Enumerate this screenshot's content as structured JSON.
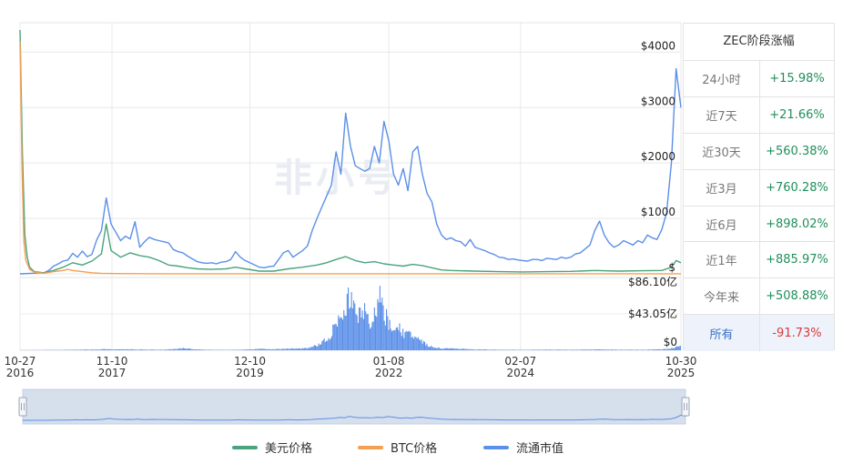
{
  "watermark": "非小号",
  "panel": {
    "title": "ZEC阶段涨幅",
    "rows": [
      {
        "label": "24小时",
        "value": "+15.98%",
        "color": "#1f8f5a"
      },
      {
        "label": "近7天",
        "value": "+21.66%",
        "color": "#1f8f5a"
      },
      {
        "label": "近30天",
        "value": "+560.38%",
        "color": "#1f8f5a"
      },
      {
        "label": "近3月",
        "value": "+760.28%",
        "color": "#1f8f5a"
      },
      {
        "label": "近6月",
        "value": "+898.02%",
        "color": "#1f8f5a"
      },
      {
        "label": "近1年",
        "value": "+885.97%",
        "color": "#1f8f5a"
      },
      {
        "label": "今年来",
        "value": "+508.88%",
        "color": "#1f8f5a"
      },
      {
        "label": "所有",
        "value": "-91.73%",
        "color": "#d93a3a",
        "selected": true
      }
    ]
  },
  "legend": [
    {
      "name": "美元价格",
      "color": "#4aa37c"
    },
    {
      "name": "BTC价格",
      "color": "#f5a050"
    },
    {
      "name": "流通市值",
      "color": "#5b8fe8"
    }
  ],
  "chart_data": {
    "type": "line",
    "x_ticks": [
      {
        "label1": "10-27",
        "label2": "2016"
      },
      {
        "label1": "11-10",
        "label2": "2017"
      },
      {
        "label1": "12-10",
        "label2": "2019"
      },
      {
        "label1": "01-08",
        "label2": "2022"
      },
      {
        "label1": "02-07",
        "label2": "2024"
      },
      {
        "label1": "10-30",
        "label2": "2025"
      }
    ],
    "price_axis": {
      "ticks": [
        "$4000",
        "$3000",
        "$2000",
        "$1000",
        "$"
      ],
      "ylim": [
        0,
        4400
      ]
    },
    "volume_axis": {
      "ticks": [
        "$86.10亿",
        "$43.05亿",
        "$0"
      ],
      "ylim": [
        0,
        86.1
      ]
    },
    "series": [
      {
        "name": "流通市值",
        "color": "#5b8fe8",
        "points": [
          [
            0,
            0
          ],
          [
            3,
            12
          ],
          [
            5,
            20
          ],
          [
            6,
            60
          ],
          [
            7,
            140
          ],
          [
            8,
            180
          ],
          [
            9,
            230
          ],
          [
            10,
            250
          ],
          [
            11,
            370
          ],
          [
            12,
            300
          ],
          [
            13,
            410
          ],
          [
            14,
            310
          ],
          [
            15,
            350
          ],
          [
            16,
            610
          ],
          [
            17,
            780
          ],
          [
            18,
            1370
          ],
          [
            19,
            900
          ],
          [
            20,
            750
          ],
          [
            21,
            600
          ],
          [
            22,
            680
          ],
          [
            23,
            630
          ],
          [
            24,
            940
          ],
          [
            25,
            480
          ],
          [
            26,
            580
          ],
          [
            27,
            660
          ],
          [
            28,
            620
          ],
          [
            29,
            600
          ],
          [
            30,
            580
          ],
          [
            31,
            560
          ],
          [
            32,
            440
          ],
          [
            33,
            400
          ],
          [
            34,
            380
          ],
          [
            35,
            320
          ],
          [
            36,
            270
          ],
          [
            37,
            220
          ],
          [
            38,
            200
          ],
          [
            39,
            190
          ],
          [
            40,
            200
          ],
          [
            41,
            180
          ],
          [
            42,
            210
          ],
          [
            43,
            220
          ],
          [
            44,
            260
          ],
          [
            45,
            400
          ],
          [
            46,
            300
          ],
          [
            47,
            240
          ],
          [
            48,
            200
          ],
          [
            49,
            160
          ],
          [
            50,
            120
          ],
          [
            51,
            110
          ],
          [
            52,
            130
          ],
          [
            53,
            140
          ],
          [
            54,
            260
          ],
          [
            55,
            380
          ],
          [
            56,
            420
          ],
          [
            57,
            300
          ],
          [
            58,
            360
          ],
          [
            59,
            420
          ],
          [
            60,
            500
          ],
          [
            61,
            780
          ],
          [
            62,
            1000
          ],
          [
            63,
            1200
          ],
          [
            64,
            1400
          ],
          [
            65,
            1600
          ],
          [
            66,
            2200
          ],
          [
            67,
            1800
          ],
          [
            68,
            2900
          ],
          [
            69,
            2300
          ],
          [
            70,
            1950
          ],
          [
            71,
            1900
          ],
          [
            72,
            1850
          ],
          [
            73,
            1900
          ],
          [
            74,
            2300
          ],
          [
            75,
            2000
          ],
          [
            76,
            2750
          ],
          [
            77,
            2400
          ],
          [
            78,
            1800
          ],
          [
            79,
            1600
          ],
          [
            80,
            1900
          ],
          [
            81,
            1500
          ],
          [
            82,
            2200
          ],
          [
            83,
            2300
          ],
          [
            84,
            1800
          ],
          [
            85,
            1450
          ],
          [
            86,
            1300
          ],
          [
            87,
            900
          ],
          [
            88,
            700
          ],
          [
            89,
            620
          ],
          [
            90,
            650
          ],
          [
            91,
            600
          ],
          [
            92,
            580
          ],
          [
            93,
            500
          ],
          [
            94,
            620
          ],
          [
            95,
            480
          ],
          [
            96,
            450
          ],
          [
            97,
            420
          ],
          [
            98,
            380
          ],
          [
            99,
            350
          ],
          [
            100,
            300
          ],
          [
            101,
            290
          ],
          [
            102,
            260
          ],
          [
            103,
            270
          ],
          [
            104,
            250
          ],
          [
            105,
            240
          ],
          [
            106,
            230
          ],
          [
            107,
            260
          ],
          [
            108,
            260
          ],
          [
            109,
            240
          ],
          [
            110,
            280
          ],
          [
            111,
            270
          ],
          [
            112,
            260
          ],
          [
            113,
            300
          ],
          [
            114,
            280
          ],
          [
            115,
            300
          ],
          [
            116,
            360
          ],
          [
            117,
            380
          ],
          [
            118,
            450
          ],
          [
            119,
            520
          ],
          [
            120,
            780
          ],
          [
            121,
            950
          ],
          [
            122,
            700
          ],
          [
            123,
            560
          ],
          [
            124,
            480
          ],
          [
            125,
            520
          ],
          [
            126,
            600
          ],
          [
            127,
            560
          ],
          [
            128,
            520
          ],
          [
            129,
            600
          ],
          [
            130,
            560
          ],
          [
            131,
            700
          ],
          [
            132,
            650
          ],
          [
            133,
            620
          ],
          [
            134,
            800
          ],
          [
            135,
            1100
          ],
          [
            136,
            2000
          ],
          [
            137,
            3700
          ],
          [
            138,
            3000
          ]
        ]
      },
      {
        "name": "美元价格",
        "color": "#4aa37c",
        "points": [
          [
            0,
            4400
          ],
          [
            0.5,
            2200
          ],
          [
            1,
            700
          ],
          [
            1.5,
            300
          ],
          [
            2,
            120
          ],
          [
            3,
            40
          ],
          [
            5,
            20
          ],
          [
            7,
            60
          ],
          [
            9,
            120
          ],
          [
            11,
            200
          ],
          [
            13,
            160
          ],
          [
            15,
            230
          ],
          [
            17,
            360
          ],
          [
            18,
            900
          ],
          [
            19,
            420
          ],
          [
            21,
            300
          ],
          [
            23,
            380
          ],
          [
            25,
            330
          ],
          [
            27,
            300
          ],
          [
            29,
            240
          ],
          [
            31,
            160
          ],
          [
            33,
            140
          ],
          [
            35,
            110
          ],
          [
            37,
            90
          ],
          [
            40,
            80
          ],
          [
            43,
            90
          ],
          [
            45,
            120
          ],
          [
            47,
            90
          ],
          [
            50,
            50
          ],
          [
            53,
            50
          ],
          [
            56,
            90
          ],
          [
            59,
            120
          ],
          [
            62,
            160
          ],
          [
            64,
            200
          ],
          [
            66,
            260
          ],
          [
            68,
            310
          ],
          [
            70,
            240
          ],
          [
            72,
            200
          ],
          [
            74,
            220
          ],
          [
            76,
            180
          ],
          [
            78,
            160
          ],
          [
            80,
            140
          ],
          [
            82,
            170
          ],
          [
            84,
            150
          ],
          [
            86,
            110
          ],
          [
            88,
            70
          ],
          [
            90,
            60
          ],
          [
            95,
            50
          ],
          [
            100,
            40
          ],
          [
            105,
            35
          ],
          [
            110,
            40
          ],
          [
            115,
            45
          ],
          [
            120,
            60
          ],
          [
            125,
            50
          ],
          [
            130,
            55
          ],
          [
            134,
            60
          ],
          [
            136,
            120
          ],
          [
            137,
            240
          ],
          [
            138,
            200
          ]
        ]
      },
      {
        "name": "BTC价格",
        "color": "#f5a050",
        "points": [
          [
            0,
            4200
          ],
          [
            0.4,
            2000
          ],
          [
            0.8,
            600
          ],
          [
            1.2,
            250
          ],
          [
            2,
            80
          ],
          [
            3,
            30
          ],
          [
            5,
            10
          ],
          [
            7,
            40
          ],
          [
            9,
            60
          ],
          [
            10,
            80
          ],
          [
            11,
            60
          ],
          [
            13,
            40
          ],
          [
            15,
            20
          ],
          [
            17,
            10
          ],
          [
            20,
            5
          ],
          [
            25,
            3
          ],
          [
            30,
            2
          ],
          [
            40,
            1
          ],
          [
            60,
            1
          ],
          [
            80,
            1
          ],
          [
            100,
            1
          ],
          [
            120,
            1
          ],
          [
            138,
            1
          ]
        ]
      }
    ],
    "volume_bars": {
      "color": "#5b8fe8",
      "points": [
        [
          0,
          0.2
        ],
        [
          10,
          0.6
        ],
        [
          18,
          1.5
        ],
        [
          25,
          1.2
        ],
        [
          30,
          0.8
        ],
        [
          34,
          3
        ],
        [
          36,
          1.5
        ],
        [
          40,
          0.6
        ],
        [
          46,
          0.7
        ],
        [
          50,
          2
        ],
        [
          53,
          1.5
        ],
        [
          56,
          2.5
        ],
        [
          60,
          3
        ],
        [
          62,
          8
        ],
        [
          63,
          12
        ],
        [
          64,
          18
        ],
        [
          65,
          26
        ],
        [
          66,
          50
        ],
        [
          67,
          40
        ],
        [
          68,
          72
        ],
        [
          69,
          80
        ],
        [
          70,
          62
        ],
        [
          71,
          55
        ],
        [
          72,
          60
        ],
        [
          73,
          45
        ],
        [
          74,
          60
        ],
        [
          75,
          78
        ],
        [
          76,
          55
        ],
        [
          77,
          42
        ],
        [
          78,
          30
        ],
        [
          79,
          35
        ],
        [
          80,
          24
        ],
        [
          81,
          30
        ],
        [
          82,
          20
        ],
        [
          83,
          16
        ],
        [
          84,
          12
        ],
        [
          85,
          8
        ],
        [
          86,
          5
        ],
        [
          87,
          4
        ],
        [
          88,
          3
        ],
        [
          90,
          2.5
        ],
        [
          95,
          1.2
        ],
        [
          100,
          0.8
        ],
        [
          105,
          0.6
        ],
        [
          110,
          1.0
        ],
        [
          115,
          0.8
        ],
        [
          120,
          1.2
        ],
        [
          125,
          0.9
        ],
        [
          130,
          0.8
        ],
        [
          134,
          1.5
        ],
        [
          136,
          3
        ],
        [
          137,
          5
        ],
        [
          138,
          6
        ]
      ]
    },
    "navigator": {
      "color": "#5b8fe8"
    }
  }
}
